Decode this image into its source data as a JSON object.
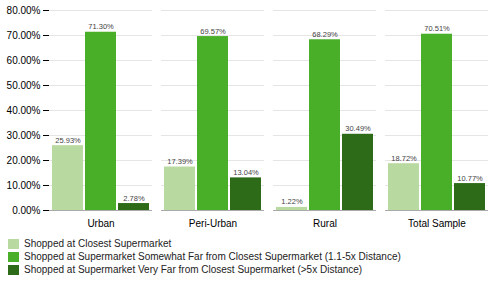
{
  "chart_data": {
    "type": "bar",
    "categories": [
      "Urban",
      "Peri-Urban",
      "Rural",
      "Total Sample"
    ],
    "series": [
      {
        "name": "Shopped at Closest Supermarket",
        "color": "#b8d9a0",
        "values": [
          25.93,
          17.39,
          1.22,
          18.72
        ],
        "value_labels": [
          "25.93%",
          "17.39%",
          "1.22%",
          "18.72%"
        ]
      },
      {
        "name": "Shopped at Supermarket Somewhat Far from Closest Supermarket (1.1-5x Distance)",
        "color": "#4aaf28",
        "values": [
          71.3,
          69.57,
          68.29,
          70.51
        ],
        "value_labels": [
          "71.30%",
          "69.57%",
          "68.29%",
          "70.51%"
        ]
      },
      {
        "name": "Shopped at Supermarket Very Far from Closest Supermarket (>5x Distance)",
        "color": "#2d6b18",
        "values": [
          2.78,
          13.04,
          30.49,
          10.77
        ],
        "value_labels": [
          "2.78%",
          "13.04%",
          "30.49%",
          "10.77%"
        ]
      }
    ],
    "ylim": [
      0,
      80
    ],
    "yticks": [
      {
        "value": 0,
        "label": "0.00%"
      },
      {
        "value": 10,
        "label": "10.00%"
      },
      {
        "value": 20,
        "label": "20.00%"
      },
      {
        "value": 30,
        "label": "30.00%"
      },
      {
        "value": 40,
        "label": "40.00%"
      },
      {
        "value": 50,
        "label": "50.00%"
      },
      {
        "value": 60,
        "label": "60.00%"
      },
      {
        "value": 70,
        "label": "70.00%"
      },
      {
        "value": 80,
        "label": "80.00%"
      }
    ],
    "grid": true,
    "legend": "bottom",
    "data_labels": true
  }
}
